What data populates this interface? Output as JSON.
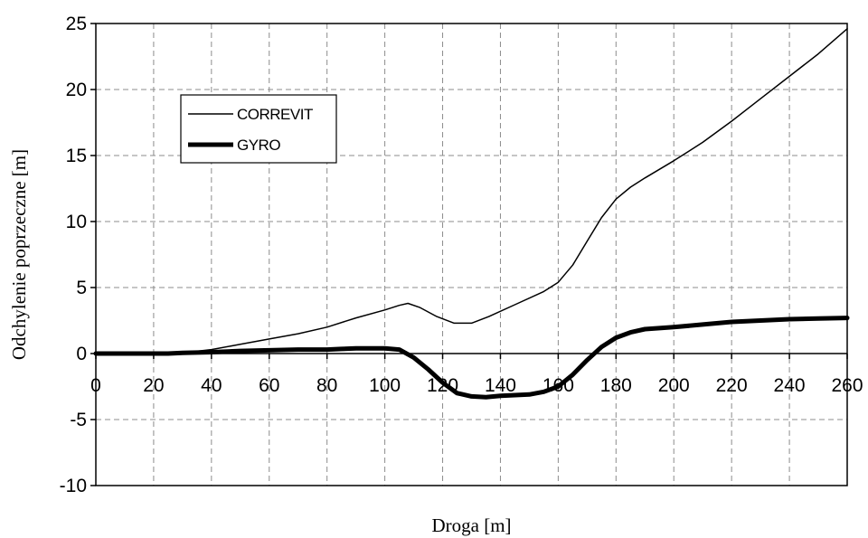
{
  "chart_data": {
    "type": "line",
    "xlabel": "Droga [m]",
    "ylabel": "Odchylenie poprzeczne [m]",
    "xlim": [
      0,
      260
    ],
    "ylim": [
      -10,
      25
    ],
    "xticks": [
      0,
      20,
      40,
      60,
      80,
      100,
      120,
      140,
      160,
      180,
      200,
      220,
      240,
      260
    ],
    "yticks": [
      -10,
      -5,
      0,
      5,
      10,
      15,
      20,
      25
    ],
    "grid": true,
    "legend": "top-left",
    "series": [
      {
        "name": "CORREVIT",
        "style": "thin",
        "color": "#000000",
        "x": [
          0,
          20,
          30,
          40,
          50,
          60,
          70,
          80,
          90,
          100,
          105,
          108,
          112,
          118,
          124,
          130,
          136,
          145,
          155,
          160,
          165,
          170,
          175,
          180,
          185,
          190,
          200,
          210,
          220,
          230,
          240,
          250,
          260
        ],
        "y": [
          0,
          0,
          0.05,
          0.3,
          0.7,
          1.1,
          1.5,
          2.0,
          2.7,
          3.3,
          3.65,
          3.8,
          3.5,
          2.8,
          2.3,
          2.3,
          2.8,
          3.7,
          4.7,
          5.4,
          6.7,
          8.5,
          10.3,
          11.7,
          12.6,
          13.3,
          14.6,
          16.0,
          17.6,
          19.3,
          21.0,
          22.7,
          24.6
        ]
      },
      {
        "name": "GYRO",
        "style": "thick",
        "color": "#000000",
        "x": [
          0,
          25,
          30,
          40,
          50,
          60,
          70,
          80,
          85,
          90,
          100,
          105,
          110,
          115,
          120,
          125,
          130,
          135,
          140,
          150,
          155,
          160,
          165,
          170,
          175,
          180,
          185,
          190,
          200,
          210,
          220,
          230,
          240,
          250,
          260
        ],
        "y": [
          0,
          0,
          0.05,
          0.1,
          0.2,
          0.25,
          0.3,
          0.3,
          0.35,
          0.4,
          0.4,
          0.3,
          -0.3,
          -1.2,
          -2.2,
          -3.0,
          -3.25,
          -3.3,
          -3.2,
          -3.1,
          -2.9,
          -2.5,
          -1.6,
          -0.5,
          0.5,
          1.2,
          1.6,
          1.85,
          2.0,
          2.2,
          2.4,
          2.5,
          2.6,
          2.65,
          2.7
        ]
      }
    ]
  }
}
